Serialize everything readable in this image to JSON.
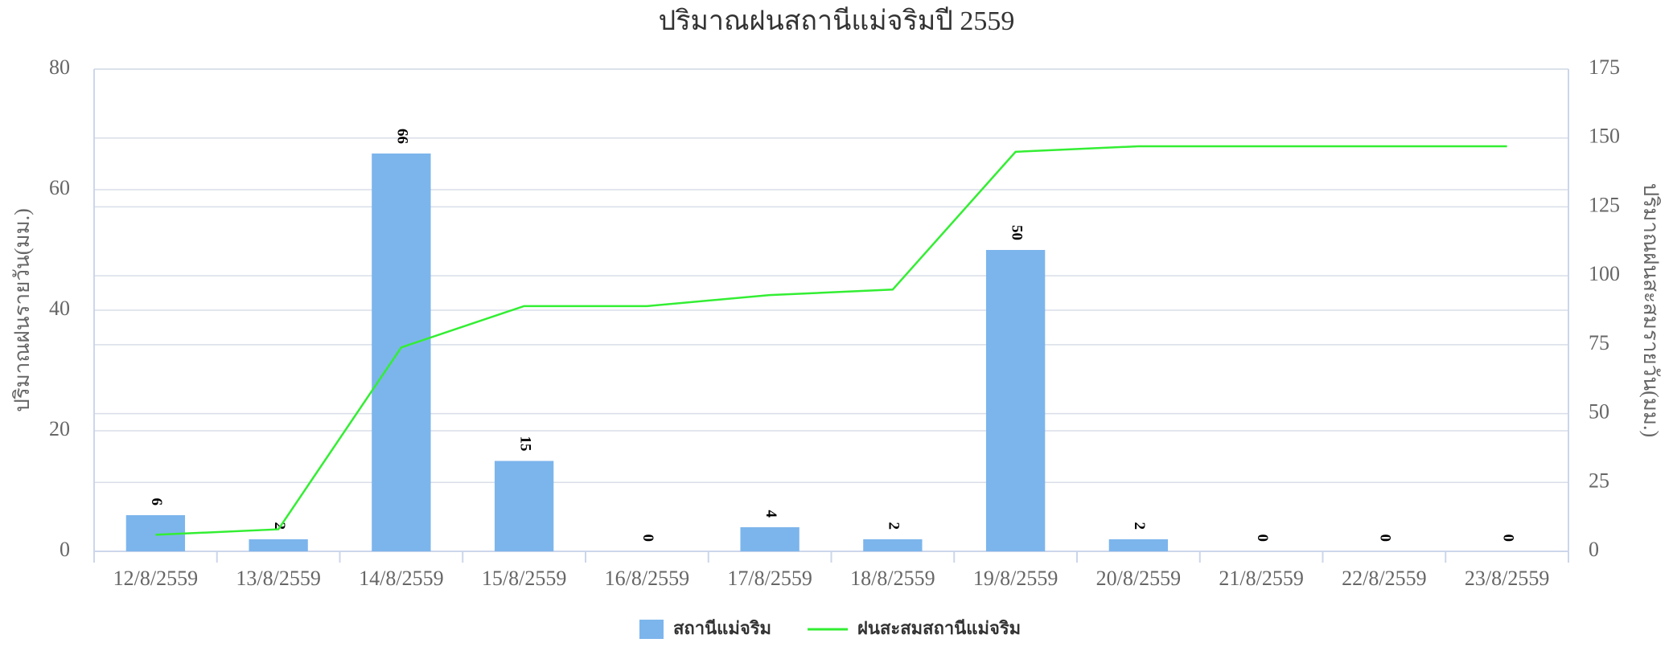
{
  "chart_data": {
    "type": "bar",
    "title": "ปริมาณฝนสถานีแม่จริมปี 2559",
    "categories": [
      "12/8/2559",
      "13/8/2559",
      "14/8/2559",
      "15/8/2559",
      "16/8/2559",
      "17/8/2559",
      "18/8/2559",
      "19/8/2559",
      "20/8/2559",
      "21/8/2559",
      "22/8/2559",
      "23/8/2559"
    ],
    "y_label": "ปริมาณฝนรายวัน(มม.)",
    "y2_label": "ปริมาณฝนสะสมรายวัน(มม.)",
    "series": [
      {
        "name": "สถานีแม่จริม",
        "type": "bar",
        "color": "#7cb5ec",
        "values": [
          6,
          2,
          66,
          15,
          0,
          4,
          2,
          50,
          2,
          0,
          0,
          0
        ]
      },
      {
        "name": "ฝนสะสมสถานีแม่จริม",
        "type": "line",
        "axis": "y2",
        "color": "#33ee33",
        "values": [
          6,
          8,
          74,
          89,
          89,
          93,
          95,
          145,
          147,
          147,
          147,
          147
        ]
      }
    ],
    "ylim": [
      0,
      80
    ],
    "yticks": [
      0,
      20,
      40,
      60,
      80
    ],
    "y2lim": [
      0,
      175
    ],
    "y2ticks": [
      0,
      25,
      50,
      75,
      100,
      125,
      150,
      175
    ],
    "grid": true,
    "legend": "bottom"
  }
}
